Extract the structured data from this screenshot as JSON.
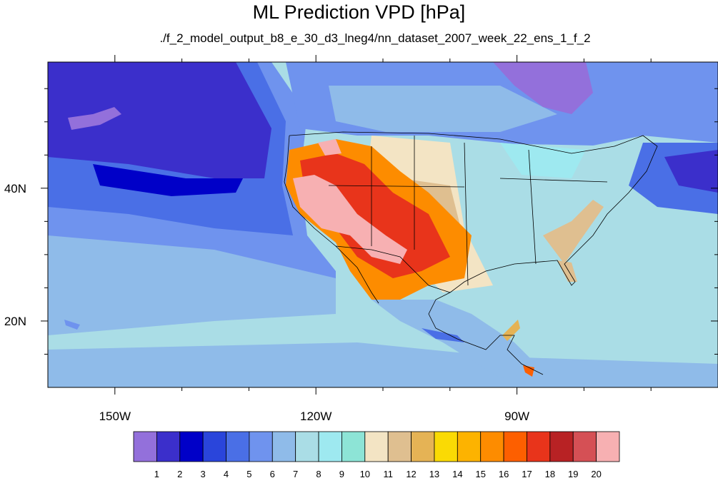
{
  "title": "ML Prediction VPD [hPa]",
  "subtitle": "./f_2_model_output_b8_e_30_d3_lneg4/nn_dataset_2007_week_22_ens_1_f_2",
  "map": {
    "lon_range": [
      -160,
      -60
    ],
    "lat_range": [
      10,
      59
    ],
    "lon_ticks": [
      {
        "value": -150,
        "label": "150W"
      },
      {
        "value": -120,
        "label": "120W"
      },
      {
        "value": -90,
        "label": "90W"
      }
    ],
    "lat_ticks": [
      {
        "value": 40,
        "label": "40N"
      },
      {
        "value": 20,
        "label": "20N"
      }
    ],
    "minor_lon_ticks": [
      -140,
      -130,
      -110,
      -100,
      -80,
      -70
    ],
    "minor_lat_ticks": [
      15,
      25,
      30,
      35,
      45,
      50,
      55
    ]
  },
  "colorbar": {
    "colors": [
      "#9370db",
      "#3b2fcb",
      "#0000c8",
      "#2a45db",
      "#4a6fe6",
      "#6f93ee",
      "#8fbbe9",
      "#aadde6",
      "#9ee9f0",
      "#8de4d6",
      "#f3e4c4",
      "#dfbf90",
      "#e5b355",
      "#fada04",
      "#fdb300",
      "#fd8c00",
      "#fd5f00",
      "#e8341b",
      "#b82224",
      "#d55055",
      "#f7b0b2"
    ],
    "labels": [
      "1",
      "2",
      "3",
      "4",
      "5",
      "6",
      "7",
      "8",
      "9",
      "10",
      "11",
      "12",
      "13",
      "14",
      "15",
      "16",
      "17",
      "18",
      "19",
      "20"
    ]
  }
}
